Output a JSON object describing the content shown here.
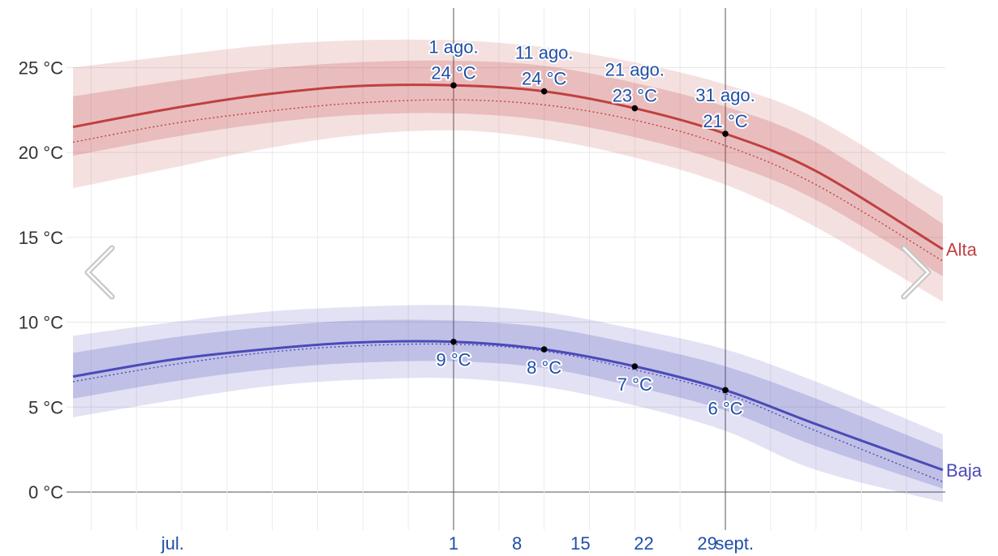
{
  "chart_data": {
    "type": "area",
    "x_range": [
      "2024-06-20",
      "2024-09-24"
    ],
    "ylim": [
      -1,
      28.5
    ],
    "y_unit": "°C",
    "y_ticks": [
      {
        "value": 0,
        "label": "0 °C"
      },
      {
        "value": 5,
        "label": "5 °C"
      },
      {
        "value": 10,
        "label": "10 °C"
      },
      {
        "value": 15,
        "label": "15 °C"
      },
      {
        "value": 20,
        "label": "20 °C"
      },
      {
        "value": 25,
        "label": "25 °C"
      }
    ],
    "x_ticks": [
      {
        "date": "2024-07-01",
        "label": "jul."
      },
      {
        "date": "2024-08-01",
        "label": "1"
      },
      {
        "date": "2024-08-08",
        "label": "8"
      },
      {
        "date": "2024-08-15",
        "label": "15"
      },
      {
        "date": "2024-08-22",
        "label": "22"
      },
      {
        "date": "2024-08-29",
        "label": "29"
      },
      {
        "date": "2024-09-01",
        "label": "sept."
      }
    ],
    "grid": true,
    "x": [
      "2024-06-20",
      "2024-07-01",
      "2024-07-11",
      "2024-07-21",
      "2024-08-01",
      "2024-08-11",
      "2024-08-21",
      "2024-08-31",
      "2024-09-10",
      "2024-09-24"
    ],
    "series": [
      {
        "name": "Alta",
        "color": "#c04040",
        "mean": [
          21.5,
          22.6,
          23.4,
          23.9,
          23.95,
          23.6,
          22.6,
          21.1,
          18.9,
          14.3
        ],
        "median": [
          20.6,
          21.7,
          22.4,
          22.9,
          23.1,
          22.8,
          21.9,
          20.4,
          18.1,
          13.6
        ],
        "p25": [
          19.8,
          20.9,
          21.7,
          22.2,
          22.3,
          21.9,
          20.9,
          19.4,
          17.2,
          12.7
        ],
        "p75": [
          23.3,
          24.2,
          24.9,
          25.3,
          25.4,
          25.1,
          24.1,
          22.7,
          20.6,
          15.8
        ],
        "p10": [
          17.9,
          19.1,
          20.2,
          21.0,
          21.3,
          20.8,
          19.7,
          18.1,
          15.6,
          11.2
        ],
        "p90": [
          25.0,
          25.7,
          26.3,
          26.6,
          26.6,
          26.2,
          25.3,
          24.0,
          22.0,
          17.4
        ]
      },
      {
        "name": "Baja",
        "color": "#4a4ab8",
        "mean": [
          6.8,
          7.8,
          8.4,
          8.8,
          8.85,
          8.4,
          7.4,
          6.0,
          4.0,
          1.3
        ],
        "median": [
          6.5,
          7.5,
          8.2,
          8.6,
          8.7,
          8.3,
          7.2,
          5.8,
          3.6,
          0.6
        ],
        "p25": [
          5.5,
          6.5,
          7.2,
          7.6,
          7.7,
          7.3,
          6.2,
          4.8,
          2.7,
          0.2
        ],
        "p75": [
          8.2,
          9.1,
          9.7,
          10.1,
          10.1,
          9.7,
          8.7,
          7.4,
          5.5,
          2.5
        ],
        "p10": [
          4.4,
          5.4,
          6.2,
          6.6,
          6.7,
          6.2,
          5.1,
          3.6,
          1.3,
          -0.6
        ],
        "p90": [
          9.2,
          10.0,
          10.6,
          10.9,
          11.0,
          10.6,
          9.6,
          8.4,
          6.5,
          3.4
        ]
      }
    ],
    "annotations": [
      {
        "series": "Alta",
        "date": "2024-08-01",
        "value": 23.95,
        "line1": "1 ago.",
        "line2": "24 °C"
      },
      {
        "series": "Alta",
        "date": "2024-08-11",
        "value": 23.6,
        "line1": "11 ago.",
        "line2": "24 °C"
      },
      {
        "series": "Alta",
        "date": "2024-08-21",
        "value": 22.6,
        "line1": "21 ago.",
        "line2": "23 °C"
      },
      {
        "series": "Alta",
        "date": "2024-08-31",
        "value": 21.1,
        "line1": "31 ago.",
        "line2": "21 °C"
      },
      {
        "series": "Baja",
        "date": "2024-08-01",
        "value": 8.85,
        "line1": "9 °C"
      },
      {
        "series": "Baja",
        "date": "2024-08-11",
        "value": 8.4,
        "line1": "8 °C"
      },
      {
        "series": "Baja",
        "date": "2024-08-21",
        "value": 7.4,
        "line1": "7 °C"
      },
      {
        "series": "Baja",
        "date": "2024-08-31",
        "value": 6.0,
        "line1": "6 °C"
      }
    ],
    "highlight_dates": [
      "2024-08-01",
      "2024-08-31"
    ]
  },
  "nav": {
    "prev_icon": "chevron-left-icon",
    "next_icon": "chevron-right-icon"
  }
}
